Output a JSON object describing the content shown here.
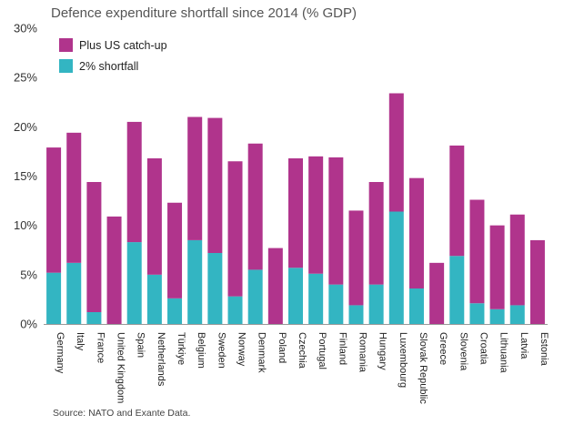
{
  "chart_data": {
    "type": "bar",
    "stacked": true,
    "title": "Defence expenditure shortfall since 2014 (% GDP)",
    "source": "Source: NATO and Exante Data.",
    "categories": [
      "Germany",
      "Italy",
      "France",
      "United Kingdom",
      "Spain",
      "Netherlands",
      "Türkiye",
      "Belgium",
      "Sweden",
      "Norway",
      "Denmark",
      "Poland",
      "Czechia",
      "Portugal",
      "Finland",
      "Romania",
      "Hungary",
      "Luxembourg",
      "Slovak Republic",
      "Greece",
      "Slovenia",
      "Croatia",
      "Lithuania",
      "Latvia",
      "Estonia"
    ],
    "series": [
      {
        "name": "2% shortfall",
        "color": "#33b5c2",
        "values": [
          5.2,
          6.2,
          1.2,
          0,
          8.3,
          5.0,
          2.6,
          8.5,
          7.2,
          2.8,
          5.5,
          0,
          5.7,
          5.1,
          4.0,
          1.9,
          4.0,
          11.4,
          3.6,
          0,
          6.9,
          2.1,
          1.5,
          1.9,
          0
        ]
      },
      {
        "name": "Plus US catch-up",
        "color": "#b0348c",
        "values": [
          12.7,
          13.2,
          13.2,
          10.9,
          12.2,
          11.8,
          9.7,
          12.5,
          13.7,
          13.7,
          12.8,
          7.7,
          11.1,
          11.9,
          12.9,
          9.6,
          10.4,
          12.0,
          11.2,
          6.2,
          11.2,
          10.5,
          8.5,
          9.2,
          8.5
        ]
      }
    ],
    "yticks": [
      "0%",
      "5%",
      "10%",
      "15%",
      "20%",
      "25%",
      "30%"
    ],
    "ylim": [
      0,
      30
    ],
    "legend": "top-left",
    "grid": false
  }
}
